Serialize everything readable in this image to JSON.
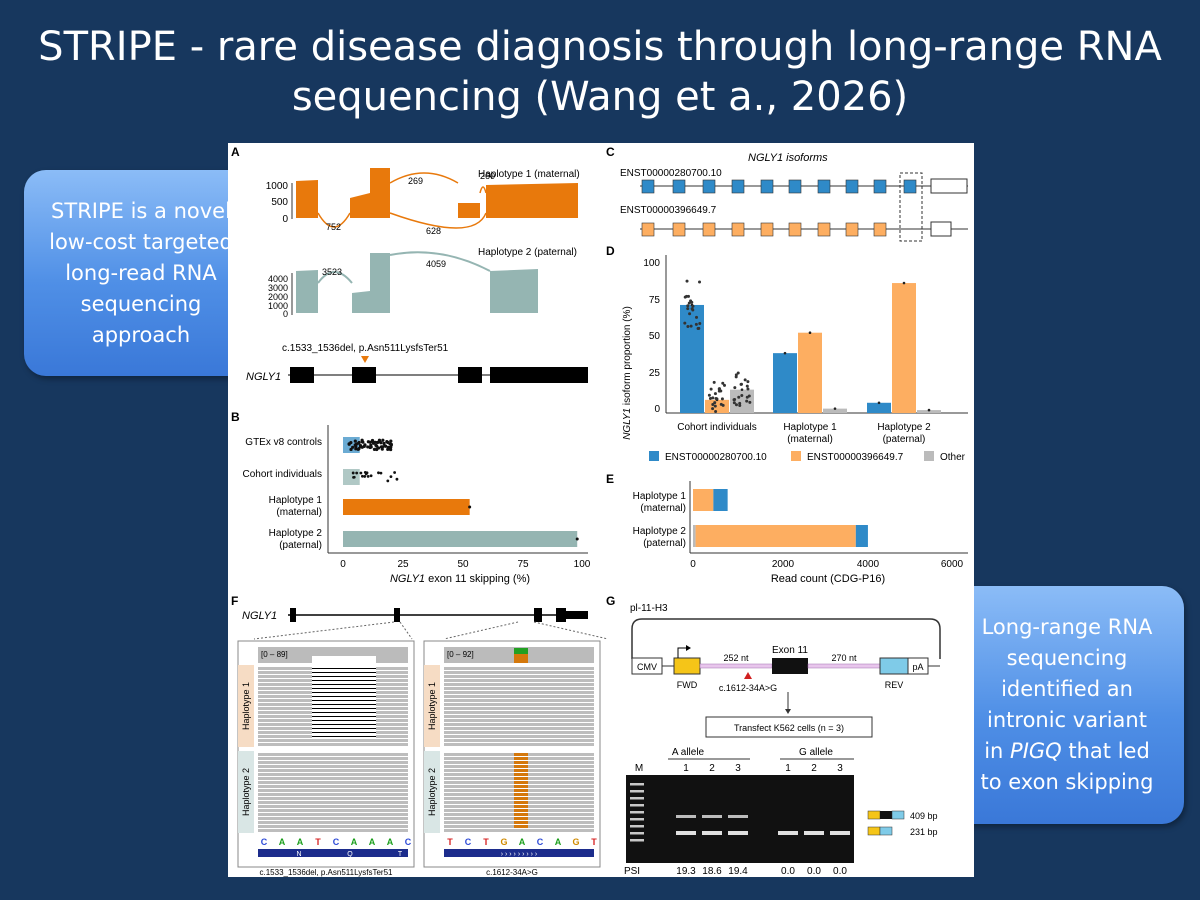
{
  "slide": {
    "title_line1": "STRIPE - rare disease diagnosis through long-range RNA",
    "title_line2": "sequencing (Wang et a., 2026)"
  },
  "callouts": {
    "left": [
      "STRIPE is a novel",
      "low-cost targeted",
      "long-read RNA",
      "sequencing",
      "approach"
    ],
    "right_lines": [
      "Long-range RNA",
      "sequencing",
      "identified an",
      "intronic variant"
    ],
    "right_in": "in ",
    "right_gene": "PIGQ",
    "right_after": " that led",
    "right_last": "to exon skipping"
  },
  "figure": {
    "panelA": {
      "letter": "A",
      "hap1_label": "Haplotype 1 (maternal)",
      "hap2_label": "Haplotype 2 (paternal)",
      "hap1_yticks": [
        "1000",
        "500",
        "0"
      ],
      "hap2_yticks": [
        "4000",
        "3000",
        "2000",
        "1000",
        "0"
      ],
      "hap1_junctions": [
        "269",
        "260",
        "752",
        "628"
      ],
      "hap2_junctions": [
        "3523",
        "4059"
      ],
      "variant_label": "c.1533_1536del, p.Asn511LysfsTer51",
      "gene": "NGLY1",
      "colors": {
        "hap1": "#e8790c",
        "hap2": "#95b5b2"
      }
    },
    "panelB": {
      "letter": "B",
      "rows": [
        "GTEx v8 controls",
        "Cohort individuals",
        "Haplotype 1",
        "(maternal)",
        "Haplotype 2",
        "(paternal)"
      ],
      "xticks": [
        "0",
        "25",
        "50",
        "75",
        "100"
      ],
      "xlabel_gene": "NGLY1",
      "xlabel_rest": " exon 11 skipping (%)"
    },
    "panelC": {
      "letter": "C",
      "title": "NGLY1 isoforms",
      "iso1": "ENST00000280700.10",
      "iso2": "ENST00000396649.7"
    },
    "panelD": {
      "letter": "D",
      "ylabel_gene": "NGLY1",
      "ylabel_rest": " isoform proportion (%)",
      "yticks": [
        "100",
        "75",
        "50",
        "25",
        "0"
      ],
      "groups": [
        "Cohort individuals",
        "Haplotype 1",
        "(maternal)",
        "Haplotype 2",
        "(paternal)"
      ],
      "legend": [
        "ENST00000280700.10",
        "ENST00000396649.7",
        "Other"
      ],
      "colors": {
        "iso1": "#2f8ac8",
        "iso2": "#fdae61",
        "other": "#bbbbbb"
      }
    },
    "panelE": {
      "letter": "E",
      "rows": [
        "Haplotype 1",
        "(maternal)",
        "Haplotype 2",
        "(paternal)"
      ],
      "xticks": [
        "0",
        "2000",
        "4000",
        "6000"
      ],
      "xlabel": "Read count (CDG-P16)"
    },
    "panelF": {
      "letter": "F",
      "gene": "NGLY1",
      "range1": "[0 – 89]",
      "range2": "[0 – 92]",
      "hap1": "Haplotype 1",
      "hap2": "Haplotype 2",
      "seq1": [
        "C",
        "A",
        "A",
        "T",
        "C",
        "A",
        "A",
        "A",
        "C"
      ],
      "aa1": [
        "N",
        "Q",
        "T"
      ],
      "seq2": [
        "T",
        "C",
        "T",
        "G",
        "A",
        "C",
        "A",
        "G",
        "T"
      ],
      "cap1": "c.1533_1536del, p.Asn511LysfsTer51",
      "cap2": "c.1612-34A>G"
    },
    "panelG": {
      "letter": "G",
      "plasmid": "pl-11-H3",
      "cmv": "CMV",
      "exon": "Exon 11",
      "nt1": "252 nt",
      "nt2": "270 nt",
      "pa": "pA",
      "fwd": "FWD",
      "rev": "REV",
      "variant": "c.1612-34A>G",
      "transfect": "Transfect K562 cells (n = 3)",
      "a_allele": "A allele",
      "g_allele": "G allele",
      "marker": "M",
      "lanes": [
        "1",
        "2",
        "3",
        "1",
        "2",
        "3"
      ],
      "band1": "409 bp",
      "band2": "231 bp",
      "psi_label": "PSI",
      "psi": [
        "19.3",
        "18.6",
        "19.4",
        "0.0",
        "0.0",
        "0.0"
      ]
    }
  }
}
